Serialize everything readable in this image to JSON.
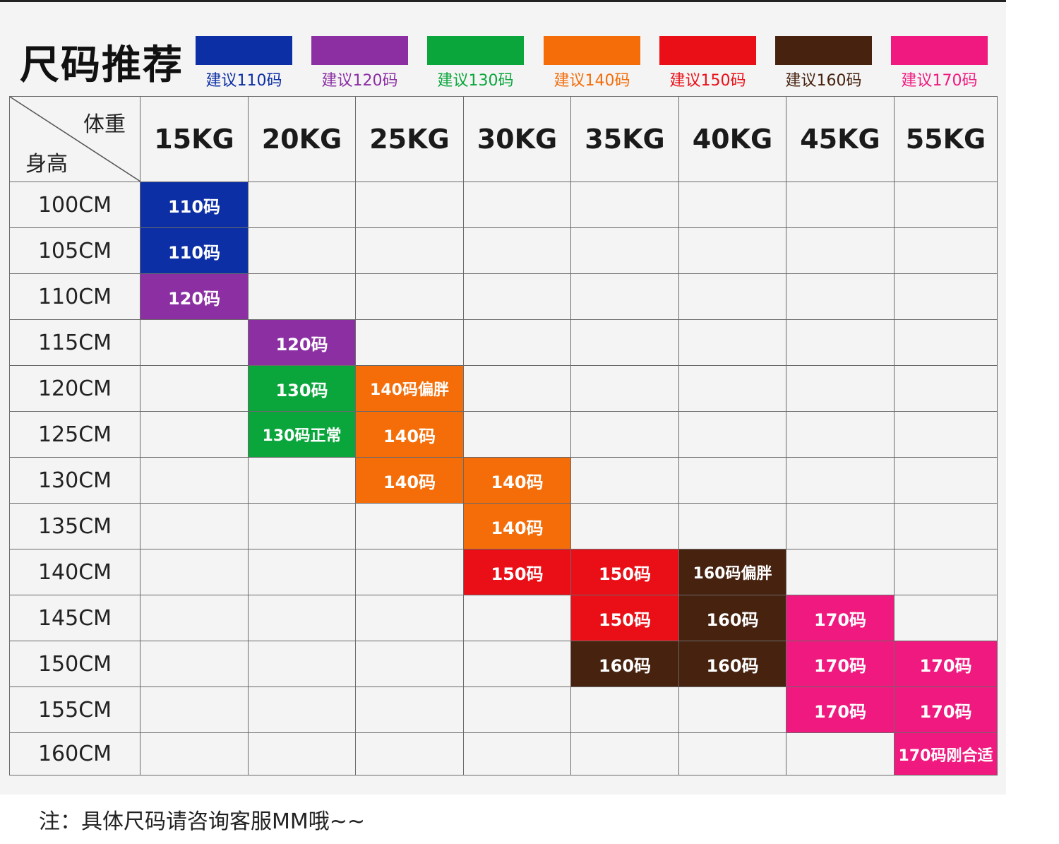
{
  "title": "尺码推荐",
  "legend": [
    {
      "label": "建议110码",
      "color": "#0d2fa5"
    },
    {
      "label": "建议120码",
      "color": "#8b2fa3"
    },
    {
      "label": "建议130码",
      "color": "#0aa63c"
    },
    {
      "label": "建议140码",
      "color": "#f46d09"
    },
    {
      "label": "建议150码",
      "color": "#ea0f17"
    },
    {
      "label": "建议160码",
      "color": "#46220f"
    },
    {
      "label": "建议170码",
      "color": "#f0197f"
    }
  ],
  "table": {
    "corner_weight": "体重",
    "corner_height": "身高",
    "weights": [
      "15KG",
      "20KG",
      "25KG",
      "30KG",
      "35KG",
      "40KG",
      "45KG",
      "55KG"
    ],
    "rows": [
      {
        "height": "100CM",
        "cells": [
          {
            "col": 0,
            "label": "110码",
            "size": 0
          }
        ]
      },
      {
        "height": "105CM",
        "cells": [
          {
            "col": 0,
            "label": "110码",
            "size": 0
          }
        ]
      },
      {
        "height": "110CM",
        "cells": [
          {
            "col": 0,
            "label": "120码",
            "size": 1
          }
        ]
      },
      {
        "height": "115CM",
        "cells": [
          {
            "col": 1,
            "label": "120码",
            "size": 1
          }
        ]
      },
      {
        "height": "120CM",
        "cells": [
          {
            "col": 1,
            "label": "130码",
            "size": 2
          },
          {
            "col": 2,
            "label": "140码偏胖",
            "size": 3
          }
        ]
      },
      {
        "height": "125CM",
        "cells": [
          {
            "col": 1,
            "label": "130码正常",
            "size": 2
          },
          {
            "col": 2,
            "label": "140码",
            "size": 3
          }
        ]
      },
      {
        "height": "130CM",
        "cells": [
          {
            "col": 2,
            "label": "140码",
            "size": 3
          },
          {
            "col": 3,
            "label": "140码",
            "size": 3
          }
        ]
      },
      {
        "height": "135CM",
        "cells": [
          {
            "col": 3,
            "label": "140码",
            "size": 3
          }
        ]
      },
      {
        "height": "140CM",
        "cells": [
          {
            "col": 3,
            "label": "150码",
            "size": 4
          },
          {
            "col": 4,
            "label": "150码",
            "size": 4
          },
          {
            "col": 5,
            "label": "160码偏胖",
            "size": 5
          }
        ]
      },
      {
        "height": "145CM",
        "cells": [
          {
            "col": 4,
            "label": "150码",
            "size": 4
          },
          {
            "col": 5,
            "label": "160码",
            "size": 5
          },
          {
            "col": 6,
            "label": "170码",
            "size": 6
          }
        ]
      },
      {
        "height": "150CM",
        "cells": [
          {
            "col": 4,
            "label": "160码",
            "size": 5
          },
          {
            "col": 5,
            "label": "160码",
            "size": 5
          },
          {
            "col": 6,
            "label": "170码",
            "size": 6
          },
          {
            "col": 7,
            "label": "170码",
            "size": 6
          }
        ]
      },
      {
        "height": "155CM",
        "cells": [
          {
            "col": 6,
            "label": "170码",
            "size": 6
          },
          {
            "col": 7,
            "label": "170码",
            "size": 6
          }
        ]
      },
      {
        "height": "160CM",
        "cells": [
          {
            "col": 7,
            "label": "170码刚合适",
            "size": 6
          }
        ]
      }
    ]
  },
  "note": "注：具体尺码请咨询客服MM哦~~"
}
